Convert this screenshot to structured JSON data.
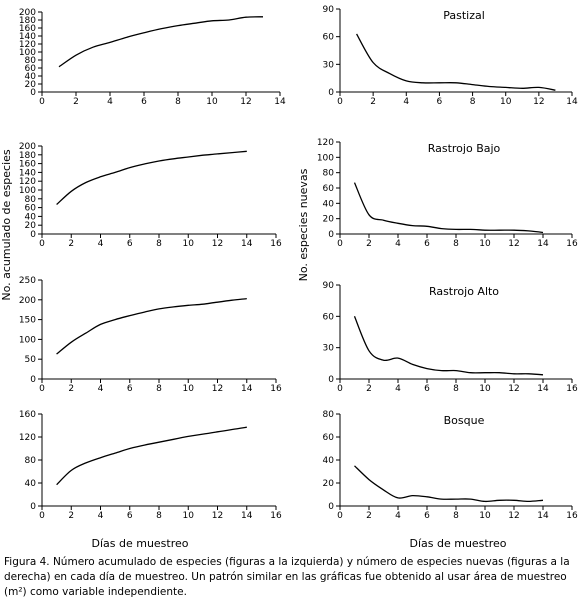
{
  "left_ylabel": "No. acumulado de especies",
  "right_ylabel": "No. especies nuevas",
  "left_xlabel": "Días de muestreo",
  "right_xlabel": "Días de muestreo",
  "caption": "Figura 4. Número acumulado de especies (figuras a la izquierda) y número de especies nuevas (figuras a la derecha) en cada día de muestreo. Un patrón similar en las gráficas fue obtenido al usar área de muestreo (m²) como variable independiente.",
  "chart_data": [
    {
      "id": "left-1",
      "type": "line",
      "title": "",
      "x": [
        1,
        2,
        3,
        4,
        5,
        6,
        7,
        8,
        9,
        10,
        11,
        12,
        13
      ],
      "values": [
        63,
        92,
        112,
        124,
        137,
        148,
        158,
        166,
        172,
        178,
        180,
        187,
        188
      ],
      "xlim": [
        0,
        14
      ],
      "xticks": [
        0,
        2,
        4,
        6,
        8,
        10,
        12,
        14
      ],
      "ylim": [
        0,
        200
      ],
      "yticks": [
        0,
        40,
        80,
        120,
        160,
        200
      ],
      "extra_ytick_labels": [
        20,
        60,
        100,
        140,
        180
      ]
    },
    {
      "id": "right-1",
      "type": "line",
      "title": "Pastizal",
      "x": [
        1,
        2,
        3,
        4,
        5,
        6,
        7,
        8,
        9,
        10,
        11,
        12,
        13
      ],
      "values": [
        63,
        32,
        20,
        12,
        10,
        10,
        10,
        8,
        6,
        5,
        4,
        5,
        2
      ],
      "xlim": [
        0,
        14
      ],
      "xticks": [
        0,
        2,
        4,
        6,
        8,
        10,
        12,
        14
      ],
      "ylim": [
        0,
        90
      ],
      "yticks": [
        0,
        30,
        60,
        90
      ]
    },
    {
      "id": "left-2",
      "type": "line",
      "title": "",
      "x": [
        1,
        2,
        3,
        4,
        5,
        6,
        7,
        8,
        9,
        10,
        11,
        12,
        13,
        14
      ],
      "values": [
        67,
        97,
        117,
        130,
        140,
        151,
        159,
        166,
        171,
        175,
        179,
        182,
        185,
        188
      ],
      "xlim": [
        0,
        16
      ],
      "xticks": [
        0,
        2,
        4,
        6,
        8,
        10,
        12,
        14,
        16
      ],
      "ylim": [
        0,
        200
      ],
      "yticks": [
        0,
        20,
        40,
        60,
        80,
        100,
        120,
        140,
        160,
        180,
        200
      ]
    },
    {
      "id": "right-2",
      "type": "line",
      "title": "Rastrojo Bajo",
      "x": [
        1,
        2,
        3,
        4,
        5,
        6,
        7,
        8,
        9,
        10,
        11,
        12,
        13,
        14
      ],
      "values": [
        67,
        25,
        18,
        14,
        11,
        10,
        7,
        6,
        6,
        5,
        5,
        5,
        4,
        2
      ],
      "xlim": [
        0,
        16
      ],
      "xticks": [
        0,
        2,
        4,
        6,
        8,
        10,
        12,
        14,
        16
      ],
      "ylim": [
        0,
        120
      ],
      "yticks": [
        0,
        20,
        40,
        60,
        80,
        100,
        120
      ]
    },
    {
      "id": "left-3",
      "type": "line",
      "title": "",
      "x": [
        1,
        2,
        3,
        4,
        5,
        6,
        7,
        8,
        9,
        10,
        11,
        12,
        13,
        14
      ],
      "values": [
        63,
        93,
        116,
        138,
        150,
        160,
        169,
        177,
        182,
        186,
        189,
        194,
        199,
        203
      ],
      "xlim": [
        0,
        16
      ],
      "xticks": [
        0,
        2,
        4,
        6,
        8,
        10,
        12,
        14,
        16
      ],
      "ylim": [
        0,
        250
      ],
      "yticks": [
        0,
        50,
        100,
        150,
        200,
        250
      ]
    },
    {
      "id": "right-3",
      "type": "line",
      "title": "Rastrojo Alto",
      "x": [
        1,
        2,
        3,
        4,
        5,
        6,
        7,
        8,
        9,
        10,
        11,
        12,
        13,
        14
      ],
      "values": [
        60,
        27,
        18,
        20,
        14,
        10,
        8,
        8,
        6,
        6,
        6,
        5,
        5,
        4
      ],
      "xlim": [
        0,
        16
      ],
      "xticks": [
        0,
        2,
        4,
        6,
        8,
        10,
        12,
        14,
        16
      ],
      "ylim": [
        0,
        90
      ],
      "yticks": [
        0,
        30,
        60,
        90
      ]
    },
    {
      "id": "left-4",
      "type": "line",
      "title": "",
      "x": [
        1,
        2,
        3,
        4,
        5,
        6,
        7,
        8,
        9,
        10,
        11,
        12,
        13,
        14
      ],
      "values": [
        37,
        62,
        75,
        84,
        92,
        100,
        106,
        111,
        116,
        121,
        125,
        129,
        133,
        137
      ],
      "xlim": [
        0,
        16
      ],
      "xticks": [
        0,
        2,
        4,
        6,
        8,
        10,
        12,
        14,
        16
      ],
      "ylim": [
        0,
        160
      ],
      "yticks": [
        0,
        40,
        80,
        120,
        160
      ]
    },
    {
      "id": "right-4",
      "type": "line",
      "title": "Bosque",
      "x": [
        1,
        2,
        3,
        4,
        5,
        6,
        7,
        8,
        9,
        10,
        11,
        12,
        13,
        14
      ],
      "values": [
        35,
        23,
        14,
        7,
        9,
        8,
        6,
        6,
        6,
        4,
        5,
        5,
        4,
        5
      ],
      "xlim": [
        0,
        16
      ],
      "xticks": [
        0,
        2,
        4,
        6,
        8,
        10,
        12,
        14,
        16
      ],
      "ylim": [
        0,
        80
      ],
      "yticks": [
        0,
        20,
        40,
        60,
        80
      ]
    }
  ]
}
